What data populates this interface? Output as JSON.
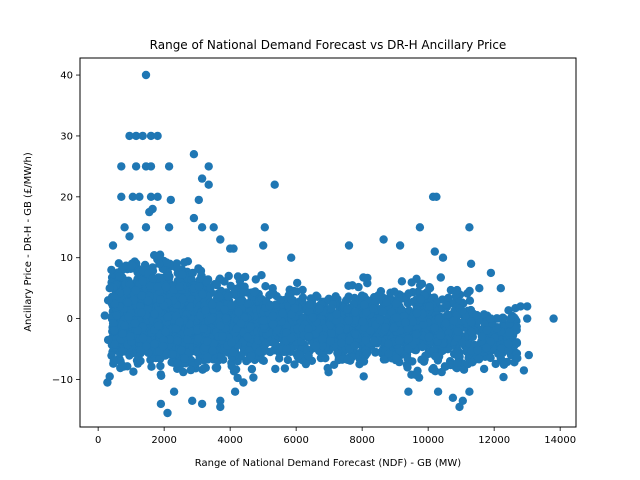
{
  "chart_data": {
    "type": "scatter",
    "title": "Range of National Demand Forecast vs DR-H Ancillary Price",
    "xlabel": "Range of National Demand Forecast (NDF) - GB (MW)",
    "ylabel": "Ancillary Price - DR-H - GB (£/MW/h)",
    "xlim": [
      -550,
      14480
    ],
    "ylim": [
      -17.8,
      42.8
    ],
    "xticks": [
      0,
      2000,
      4000,
      6000,
      8000,
      10000,
      12000,
      14000
    ],
    "xtick_labels": [
      "0",
      "2000",
      "4000",
      "6000",
      "8000",
      "10000",
      "12000",
      "14000"
    ],
    "yticks": [
      -10,
      0,
      10,
      20,
      30,
      40
    ],
    "ytick_labels": [
      "−10",
      "0",
      "10",
      "20",
      "30",
      "40"
    ],
    "grid": false,
    "marker_color": "#1f77b4",
    "series": [
      {
        "name": "DR-H",
        "points": [
          [
            1450,
            40
          ],
          [
            950,
            30
          ],
          [
            1150,
            30
          ],
          [
            1350,
            30
          ],
          [
            1600,
            30
          ],
          [
            1800,
            30
          ],
          [
            700,
            25
          ],
          [
            1150,
            25
          ],
          [
            1450,
            25
          ],
          [
            1600,
            25
          ],
          [
            2150,
            25
          ],
          [
            2900,
            27
          ],
          [
            3350,
            25
          ],
          [
            3150,
            23
          ],
          [
            3350,
            22
          ],
          [
            5350,
            22
          ],
          [
            700,
            20
          ],
          [
            1050,
            20
          ],
          [
            1250,
            20
          ],
          [
            1600,
            20
          ],
          [
            1800,
            20
          ],
          [
            2200,
            19.5
          ],
          [
            3050,
            19.5
          ],
          [
            10150,
            20
          ],
          [
            10250,
            20
          ],
          [
            1650,
            18
          ],
          [
            1550,
            17.5
          ],
          [
            2900,
            16.5
          ],
          [
            1450,
            15
          ],
          [
            3150,
            15
          ],
          [
            5050,
            15
          ],
          [
            9750,
            15
          ],
          [
            11250,
            15
          ],
          [
            800,
            15
          ],
          [
            3500,
            15
          ],
          [
            2150,
            15
          ],
          [
            950,
            13.5
          ],
          [
            3700,
            13
          ],
          [
            4000,
            11.5
          ],
          [
            4100,
            11.5
          ],
          [
            5000,
            12
          ],
          [
            5850,
            10
          ],
          [
            7600,
            12
          ],
          [
            8650,
            13
          ],
          [
            9150,
            12
          ],
          [
            10200,
            11
          ],
          [
            10450,
            10
          ],
          [
            11300,
            9
          ],
          [
            11900,
            7.5
          ],
          [
            12200,
            5
          ],
          [
            11550,
            5
          ],
          [
            12800,
            2
          ],
          [
            13000,
            2
          ],
          [
            13800,
            0
          ],
          [
            13050,
            -6
          ],
          [
            12900,
            -8.5
          ],
          [
            12700,
            -6.5
          ],
          [
            13000,
            0
          ],
          [
            12500,
            0
          ],
          [
            12100,
            0
          ],
          [
            11900,
            0
          ],
          [
            2100,
            -15.5
          ],
          [
            1900,
            -14
          ],
          [
            3150,
            -14
          ],
          [
            2850,
            -13.5
          ],
          [
            3700,
            -13.5
          ],
          [
            3700,
            -14.5
          ],
          [
            4150,
            -12
          ],
          [
            10950,
            -14.5
          ],
          [
            11050,
            -13.5
          ],
          [
            10750,
            -13
          ],
          [
            2300,
            -12
          ],
          [
            4400,
            -10.5
          ],
          [
            9400,
            -12
          ],
          [
            10300,
            -12
          ],
          [
            11250,
            -12
          ],
          [
            200,
            0.5
          ],
          [
            300,
            -3.5
          ],
          [
            280,
            -10.5
          ],
          [
            350,
            -9.5
          ],
          [
            350,
            5
          ],
          [
            400,
            8
          ],
          [
            450,
            12
          ],
          [
            300,
            3
          ]
        ]
      }
    ],
    "clusters": [
      {
        "x": [
          400,
          3200
        ],
        "y": [
          -11,
          12
        ],
        "n": 1300
      },
      {
        "x": [
          3000,
          5000
        ],
        "y": [
          -11,
          9
        ],
        "n": 550
      },
      {
        "x": [
          5000,
          8000
        ],
        "y": [
          -10,
          7
        ],
        "n": 600
      },
      {
        "x": [
          8000,
          11300
        ],
        "y": [
          -11,
          8
        ],
        "n": 650
      },
      {
        "x": [
          11300,
          12700
        ],
        "y": [
          -10,
          3
        ],
        "n": 160
      }
    ]
  }
}
